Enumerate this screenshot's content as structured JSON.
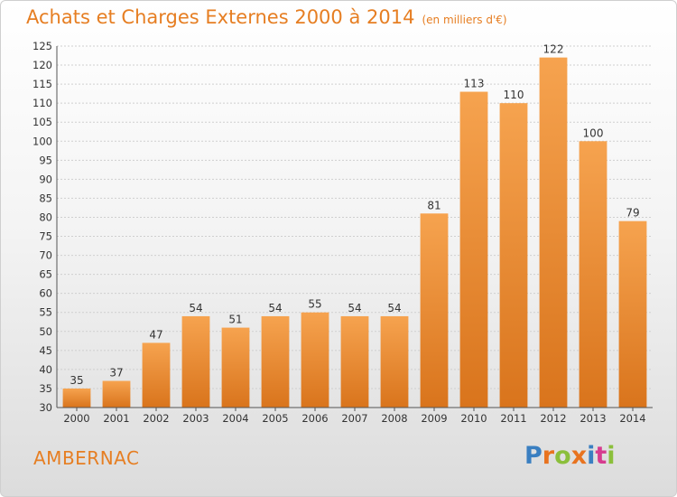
{
  "header": {
    "title": "Achats et Charges Externes 2000 à 2014",
    "subtitle": "(en milliers d'€)"
  },
  "footer": {
    "commune": "AMBERNAC",
    "logo_text": "Proxiti"
  },
  "colors": {
    "bar_top": "#f6a34f",
    "bar_bottom": "#d9741c",
    "title": "#e67e22",
    "grid": "#cfcfcf"
  },
  "chart_data": {
    "type": "bar",
    "title": "Achats et Charges Externes 2000 à 2014",
    "subtitle": "(en milliers d'€)",
    "categories": [
      "2000",
      "2001",
      "2002",
      "2003",
      "2004",
      "2005",
      "2006",
      "2007",
      "2008",
      "2009",
      "2010",
      "2011",
      "2012",
      "2013",
      "2014"
    ],
    "values": [
      35,
      37,
      47,
      54,
      51,
      54,
      55,
      54,
      54,
      81,
      113,
      110,
      122,
      100,
      79
    ],
    "ylim": [
      30,
      125
    ],
    "ytick_step": 5,
    "grid": true
  }
}
